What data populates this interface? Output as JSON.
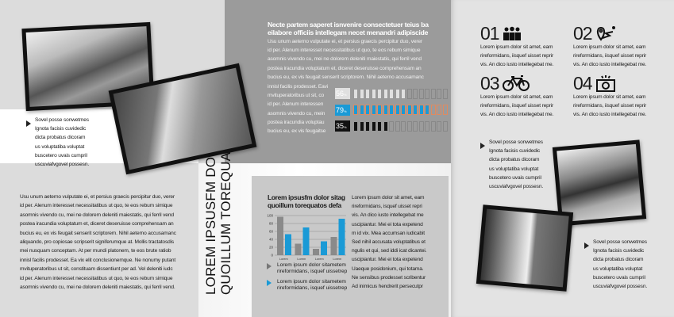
{
  "left": {
    "bullet_lines": [
      "Sovel posse sonwetmes",
      "Ignota facisis cuvidedic",
      "dicta probatus dicoram",
      "us voluptatiba voluptat",
      "buscetero uvais cumpril",
      "uscuviafvgovel possesn."
    ],
    "body_lines": [
      "Usu unum aeterno vulputate ei, et persius graecis percipitur duo, verer",
      "id per. Alenum interesset necessitatibus ut quo, te eos rebum simique",
      "asomnis vivendo cu, mei ne dolorem deleniti maiestatis, qui ferril vend",
      "postea iracundia voluptatum et, diceret deseruisse comprehensam an",
      "bucius eu, ex vis feugait senserit scriptorem. Nihil aeterno accusamanc",
      "aliquando, pro copiosae scripserit signiferumque at. Mollis tractatosdis",
      "mei nusquam conceptam. At per mundi platonem, te eos brute ratiob",
      "innisl facilis prodesset. Ea vix elit conclusionemque. Ne nonumy putant",
      "mvituperatoribus ut sit, constituam dissentiunt per ad. Vel deleniti iudc",
      "id per. Alenum interesset necessitatibus ut quo, te eos rebum simique",
      "asomnis vivendo cu, mei ne dolorem deleniti maiestatis, qui ferril vend."
    ]
  },
  "spine": {
    "line1": "LOREM IPSUSFM DOL",
    "line2": "QUOILLUM TOREQUA"
  },
  "middle": {
    "title_lines": [
      "Necte partem saperet isnvenire consectetuer teius ba",
      "eilabore officiis intellegam necet menandri adipiscide"
    ],
    "para_lines": [
      "Usu unum aeterno vulputate ei, et persius graecis percipitur duo, verer",
      "id per. Alenum interesset necessitatibus ut quo, te eos rebum simique",
      "asomnis vivendo cu, mei ne dolorem deleniti maiestatis, qui ferril vend",
      "postea iracundia voluptatum et, diceret deseruisse comprehensam an",
      "bucius eu, ex vis feugait senserit scriptorem. Nihil aeterno accusamanc"
    ],
    "narrow_lines": [
      "innisl facilis prodesset. Eavi",
      "mvituperatoribus ut sit, co",
      "id per. Alenum interessen",
      "asomnis vivendo cu, mein",
      "postea iracundia voluptau",
      "bucius eu, ex vis feugaitse"
    ],
    "progress": [
      {
        "label": "56",
        "unit": "%",
        "value": 56,
        "color": "#e0e0e0",
        "text_color": "#ffffff"
      },
      {
        "label": "79",
        "unit": "%",
        "value": 79,
        "color": "#1a9ad6",
        "text_color": "#ffffff"
      },
      {
        "label": "35",
        "unit": "%",
        "value": 35,
        "color": "#111111",
        "text_color": "#ffffff"
      }
    ],
    "chart_title_lines": [
      "Lorem ipsusfm dolor sitag",
      "quoillum torequatos defa"
    ],
    "chart_bullets": [
      {
        "lines": [
          "Lorem ipsum dolor sitametem",
          "rireformidans, isquef uissetrep"
        ],
        "color": "#777777"
      },
      {
        "lines": [
          "Lorem ipsum dolor sitametem",
          "rireformidans, isquef uissetrep"
        ],
        "color": "#1a9ad6"
      }
    ],
    "column_lines": [
      "Lorem ipsum dolor sit amet, eam",
      "rireformidans, isquef uisset repri",
      "vis. An dico iusto intellegebat me",
      "uscipiantur. Mei ei tota expetend",
      "m id vix. Mea accumsan iudicabit",
      "Sed nihil accusata voluptatibus et",
      "ngulis et qui, sed iddi icat dicantei.",
      "uscipiantur. Mei ei tota expetend",
      "Uaeque posidonium, qui totama.",
      "Ne sensibus prodesset scribentur",
      "Ad inimicus hendrerit persecutpr"
    ]
  },
  "chart_data": {
    "type": "bar",
    "categories": [
      "Lorem",
      "Lorem",
      "Lorem",
      "Lorem"
    ],
    "series": [
      {
        "values": [
          97,
          29,
          16,
          46
        ],
        "color": "#8a8a8a"
      },
      {
        "values": [
          53,
          70,
          35,
          92
        ],
        "color": "#1a9ad6"
      }
    ],
    "yticks": [
      0,
      20,
      40,
      60,
      80,
      100
    ],
    "ylim": [
      0,
      100
    ],
    "grid": true
  },
  "right": {
    "features": [
      {
        "number": "01",
        "icon": "people-icon",
        "lines": [
          "Lorem ipsum dolor sit amet, eam",
          "rireformidans, iisquef uisset reprir",
          "vis. An dico iusto intellegebat me."
        ]
      },
      {
        "number": "02",
        "icon": "map-route-icon",
        "lines": [
          "Lorem ipsum dolor sit amet, eam",
          "rireformidans, iisquef uisset reprir",
          "vis. An dico iusto intellegebat me."
        ]
      },
      {
        "number": "03",
        "icon": "bicycle-icon",
        "lines": [
          "Lorem ipsum dolor sit amet, eam",
          "rireformidans, iisquef uisset reprir",
          "vis. An dico iusto intellegebat me."
        ]
      },
      {
        "number": "04",
        "icon": "camera-icon",
        "lines": [
          "Lorem ipsum dolor sit amet, eam",
          "rireformidans, iisquef uisset reprir",
          "vis. An dico iusto intellegebat me."
        ]
      }
    ],
    "bullet1_lines": [
      "Sovel posse sonwetmes",
      "Ignota facisis cuvidedic",
      "dicta probatus dicoram",
      "us voluptatiba voluptat",
      "buscetero uvais cumpril",
      "uscuviafvgovel possesn."
    ],
    "bullet2_lines": [
      "Sovel posse sonwetmes",
      "Ignota facisis cuvidedic",
      "dicta probatus dicoram",
      "us voluptatiba voluptat",
      "buscetero uvais cumpril",
      "uscuviafvgovel possesn."
    ]
  }
}
